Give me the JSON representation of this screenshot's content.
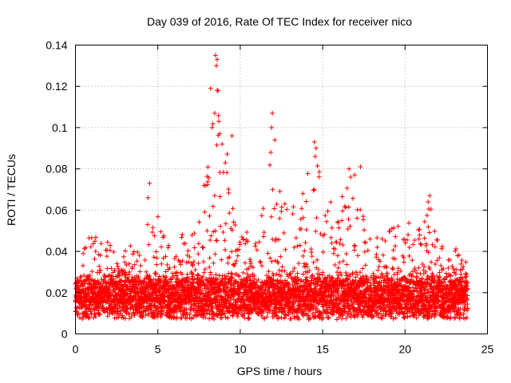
{
  "chart_data": {
    "type": "scatter",
    "title": "Day 039 of 2016, Rate Of TEC Index for receiver nico",
    "xlabel": "GPS time / hours",
    "ylabel": "ROTI / TECUs",
    "xlim": [
      0,
      25
    ],
    "ylim": [
      0,
      0.14
    ],
    "xticks": [
      0,
      5,
      10,
      15,
      20,
      25
    ],
    "yticks": [
      0,
      0.02,
      0.04,
      0.06,
      0.08,
      0.1,
      0.12,
      0.14
    ],
    "xtick_labels": [
      "0",
      "5",
      "10",
      "15",
      "20",
      "25"
    ],
    "ytick_labels": [
      "0",
      "0.02",
      "0.04",
      "0.06",
      "0.08",
      "0.1",
      "0.12",
      "0.14"
    ],
    "grid": true,
    "marker": "+",
    "color": "#ff0000",
    "series": [
      {
        "name": "ROTI",
        "envelope_hours": [
          0.0,
          0.5,
          1.0,
          1.5,
          2.0,
          2.5,
          3.0,
          3.5,
          4.0,
          4.5,
          5.0,
          5.5,
          6.0,
          6.5,
          7.0,
          7.5,
          8.0,
          8.5,
          9.0,
          9.5,
          10.0,
          10.5,
          11.0,
          11.5,
          12.0,
          12.5,
          13.0,
          13.5,
          14.0,
          14.5,
          15.0,
          15.5,
          16.0,
          16.5,
          17.0,
          17.5,
          18.0,
          18.5,
          19.0,
          19.5,
          20.0,
          20.5,
          21.0,
          21.5,
          22.0,
          22.5,
          23.0,
          23.5,
          23.8
        ],
        "envelope_upper": [
          0.03,
          0.04,
          0.055,
          0.052,
          0.045,
          0.038,
          0.04,
          0.045,
          0.042,
          0.066,
          0.06,
          0.048,
          0.045,
          0.05,
          0.052,
          0.055,
          0.08,
          0.135,
          0.1,
          0.075,
          0.055,
          0.048,
          0.045,
          0.07,
          0.107,
          0.065,
          0.068,
          0.06,
          0.078,
          0.09,
          0.072,
          0.068,
          0.06,
          0.08,
          0.081,
          0.055,
          0.045,
          0.05,
          0.05,
          0.055,
          0.058,
          0.05,
          0.055,
          0.067,
          0.048,
          0.045,
          0.042,
          0.045,
          0.033
        ],
        "baseline": 0.016,
        "base_spread": 0.009,
        "floor": 0.004,
        "points": [
          {
            "x": 8.5,
            "y": 0.135
          },
          {
            "x": 8.6,
            "y": 0.133
          },
          {
            "x": 8.55,
            "y": 0.13
          },
          {
            "x": 8.2,
            "y": 0.119
          },
          {
            "x": 8.6,
            "y": 0.118
          },
          {
            "x": 8.45,
            "y": 0.107
          },
          {
            "x": 8.7,
            "y": 0.103
          },
          {
            "x": 8.3,
            "y": 0.1
          },
          {
            "x": 8.75,
            "y": 0.097
          },
          {
            "x": 8.9,
            "y": 0.092
          },
          {
            "x": 9.5,
            "y": 0.096
          },
          {
            "x": 11.95,
            "y": 0.107
          },
          {
            "x": 11.9,
            "y": 0.1
          },
          {
            "x": 12.1,
            "y": 0.094
          },
          {
            "x": 11.85,
            "y": 0.088
          },
          {
            "x": 14.5,
            "y": 0.093
          },
          {
            "x": 14.6,
            "y": 0.09
          },
          {
            "x": 14.55,
            "y": 0.086
          },
          {
            "x": 16.6,
            "y": 0.08
          },
          {
            "x": 17.3,
            "y": 0.081
          },
          {
            "x": 16.7,
            "y": 0.076
          },
          {
            "x": 4.5,
            "y": 0.073
          },
          {
            "x": 4.4,
            "y": 0.066
          },
          {
            "x": 21.5,
            "y": 0.067
          },
          {
            "x": 21.4,
            "y": 0.064
          },
          {
            "x": 13.8,
            "y": 0.068
          },
          {
            "x": 7.8,
            "y": 0.072
          }
        ]
      }
    ]
  }
}
